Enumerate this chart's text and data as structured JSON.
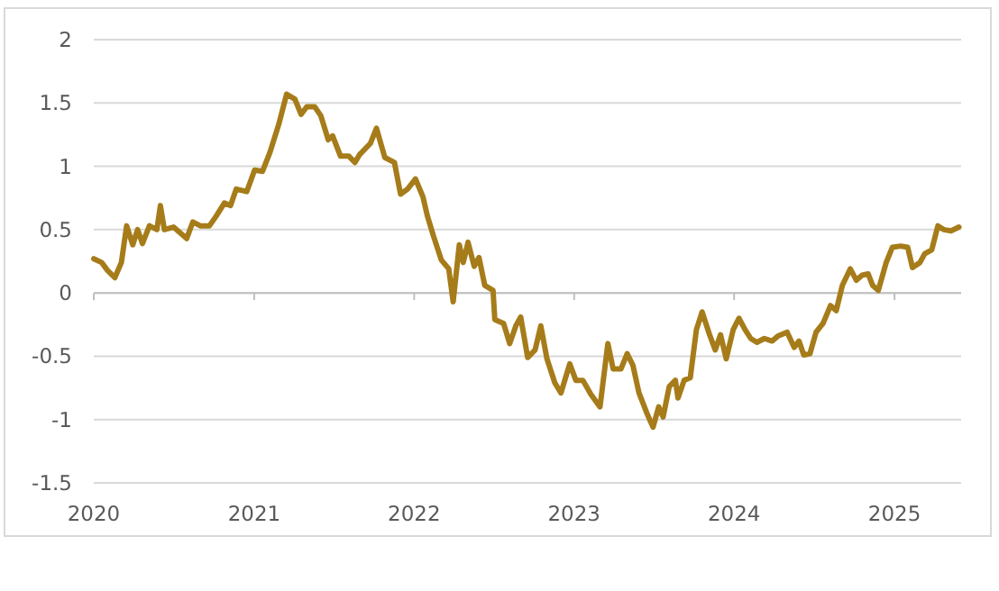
{
  "chart_data": {
    "type": "line",
    "xlim": [
      "2020-01-01",
      "2025-06-02"
    ],
    "xticks": [
      {
        "value": "2020-01-01",
        "label": "2020"
      },
      {
        "value": "2021-01-01",
        "label": "2021"
      },
      {
        "value": "2022-01-01",
        "label": "2022"
      },
      {
        "value": "2023-01-01",
        "label": "2023"
      },
      {
        "value": "2024-01-01",
        "label": "2024"
      },
      {
        "value": "2025-01-01",
        "label": "2025"
      }
    ],
    "ylim": [
      -1.5,
      2
    ],
    "yticks": [
      -1.5,
      -1,
      -0.5,
      0,
      0.5,
      1,
      1.5,
      2
    ],
    "grid": "y",
    "marker": "none",
    "line_style": "solid",
    "x": [
      "2020-01-01",
      "2020-01-19",
      "2020-02-01",
      "2020-02-18",
      "2020-03-04",
      "2020-03-16",
      "2020-03-30",
      "2020-04-10",
      "2020-04-21",
      "2020-05-07",
      "2020-05-24",
      "2020-06-01",
      "2020-06-10",
      "2020-07-01",
      "2020-07-31",
      "2020-08-14",
      "2020-08-31",
      "2020-09-21",
      "2020-10-07",
      "2020-10-25",
      "2020-11-08",
      "2020-11-21",
      "2020-12-15",
      "2021-01-02",
      "2021-01-20",
      "2021-02-06",
      "2021-02-26",
      "2021-03-16",
      "2021-04-04",
      "2021-04-18",
      "2021-05-01",
      "2021-05-19",
      "2021-06-02",
      "2021-06-19",
      "2021-06-29",
      "2021-07-17",
      "2021-08-05",
      "2021-08-19",
      "2021-08-29",
      "2021-09-23",
      "2021-10-07",
      "2021-10-26",
      "2021-11-17",
      "2021-12-01",
      "2021-12-17",
      "2022-01-04",
      "2022-01-21",
      "2022-01-31",
      "2022-02-14",
      "2022-03-04",
      "2022-03-21",
      "2022-03-31",
      "2022-04-14",
      "2022-04-23",
      "2022-05-04",
      "2022-05-18",
      "2022-05-29",
      "2022-06-11",
      "2022-06-30",
      "2022-07-04",
      "2022-07-24",
      "2022-08-07",
      "2022-08-21",
      "2022-09-01",
      "2022-09-17",
      "2022-10-04",
      "2022-10-17",
      "2022-10-31",
      "2022-11-18",
      "2022-12-02",
      "2022-12-22",
      "2023-01-05",
      "2023-01-21",
      "2023-02-08",
      "2023-03-01",
      "2023-03-19",
      "2023-03-31",
      "2023-04-18",
      "2023-05-02",
      "2023-05-15",
      "2023-05-29",
      "2023-06-16",
      "2023-06-30",
      "2023-07-13",
      "2023-07-23",
      "2023-08-06",
      "2023-08-20",
      "2023-08-26",
      "2023-09-09",
      "2023-09-23",
      "2023-10-07",
      "2023-10-20",
      "2023-11-06",
      "2023-11-19",
      "2023-12-01",
      "2023-12-14",
      "2023-12-30",
      "2024-01-12",
      "2024-01-26",
      "2024-02-08",
      "2024-02-22",
      "2024-03-10",
      "2024-03-28",
      "2024-04-10",
      "2024-05-01",
      "2024-05-17",
      "2024-05-28",
      "2024-06-08",
      "2024-06-22",
      "2024-07-06",
      "2024-07-22",
      "2024-08-08",
      "2024-08-21",
      "2024-09-04",
      "2024-09-22",
      "2024-10-06",
      "2024-10-19",
      "2024-11-02",
      "2024-11-12",
      "2024-11-25",
      "2024-12-13",
      "2024-12-27",
      "2025-01-15",
      "2025-01-31",
      "2025-02-11",
      "2025-02-28",
      "2025-03-11",
      "2025-03-27",
      "2025-04-10",
      "2025-04-23",
      "2025-05-10",
      "2025-05-28"
    ],
    "series": [
      {
        "color": "#a67c1a",
        "values": [
          0.27,
          0.24,
          0.18,
          0.12,
          0.24,
          0.53,
          0.38,
          0.5,
          0.39,
          0.53,
          0.5,
          0.69,
          0.5,
          0.52,
          0.43,
          0.56,
          0.53,
          0.53,
          0.61,
          0.71,
          0.69,
          0.82,
          0.8,
          0.97,
          0.96,
          1.11,
          1.33,
          1.57,
          1.53,
          1.41,
          1.47,
          1.47,
          1.4,
          1.21,
          1.24,
          1.08,
          1.08,
          1.03,
          1.09,
          1.18,
          1.3,
          1.07,
          1.03,
          0.78,
          0.82,
          0.9,
          0.76,
          0.61,
          0.45,
          0.26,
          0.19,
          -0.07,
          0.38,
          0.24,
          0.4,
          0.21,
          0.28,
          0.06,
          0.02,
          -0.21,
          -0.24,
          -0.4,
          -0.26,
          -0.19,
          -0.51,
          -0.45,
          -0.26,
          -0.52,
          -0.71,
          -0.79,
          -0.56,
          -0.69,
          -0.69,
          -0.8,
          -0.9,
          -0.4,
          -0.6,
          -0.6,
          -0.48,
          -0.57,
          -0.79,
          -0.95,
          -1.06,
          -0.9,
          -0.98,
          -0.74,
          -0.69,
          -0.83,
          -0.69,
          -0.67,
          -0.29,
          -0.15,
          -0.33,
          -0.45,
          -0.33,
          -0.52,
          -0.29,
          -0.2,
          -0.29,
          -0.36,
          -0.39,
          -0.36,
          -0.38,
          -0.34,
          -0.31,
          -0.43,
          -0.38,
          -0.49,
          -0.48,
          -0.31,
          -0.24,
          -0.1,
          -0.14,
          0.06,
          0.19,
          0.1,
          0.14,
          0.15,
          0.06,
          0.02,
          0.24,
          0.36,
          0.37,
          0.36,
          0.2,
          0.24,
          0.31,
          0.34,
          0.53,
          0.5,
          0.49,
          0.52
        ]
      }
    ]
  }
}
